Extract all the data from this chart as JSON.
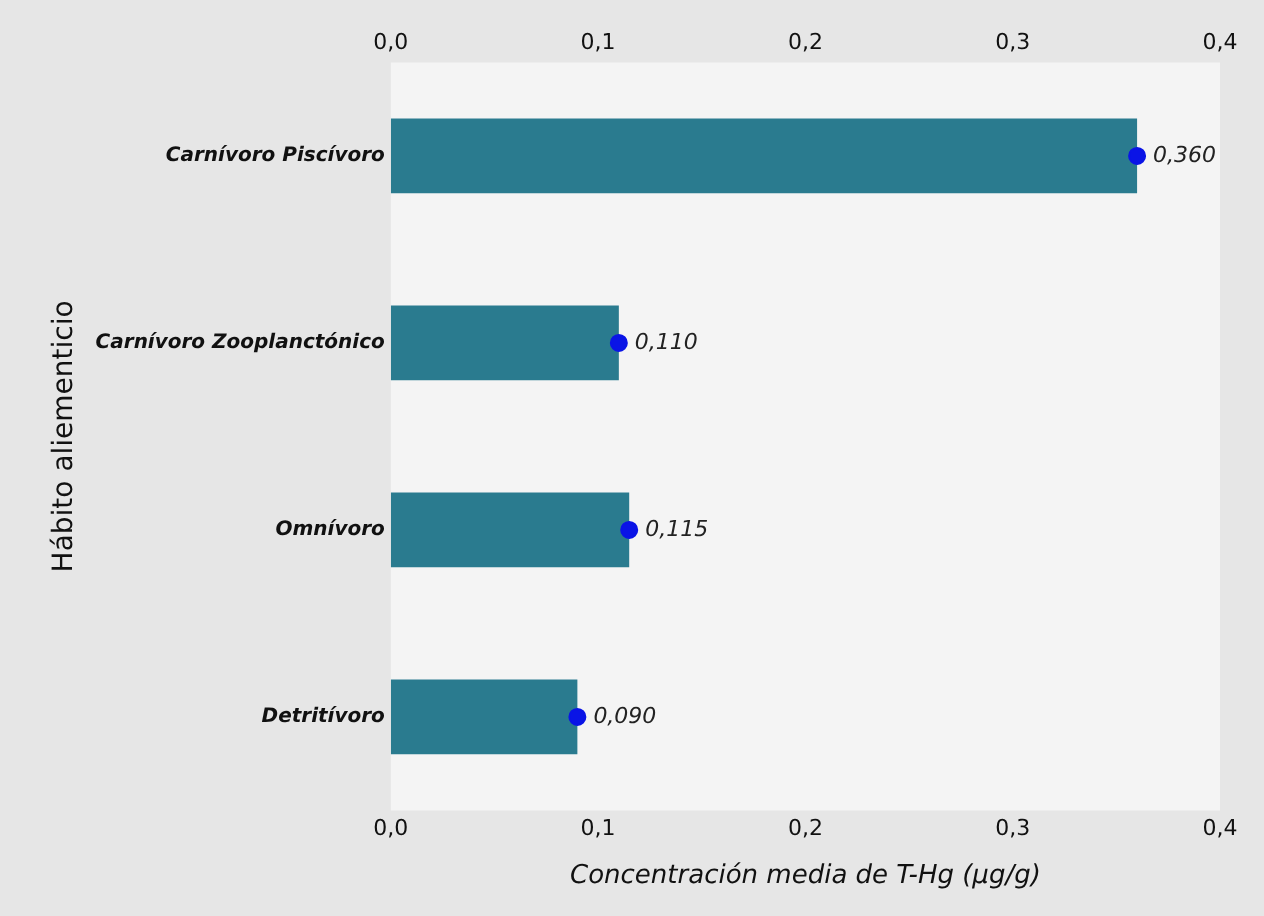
{
  "chart_data": {
    "type": "bar",
    "orientation": "horizontal",
    "xlabel": "Concentración media de T-Hg (µg/g)",
    "ylabel": "Hábito aliementicio",
    "categories": [
      "Carnívoro Piscívoro",
      "Carnívoro Zooplanctónico",
      "Omnívoro",
      "Detritívoro"
    ],
    "series": [
      {
        "type": "bar",
        "color": "#2a7b8f",
        "values": [
          0.36,
          0.11,
          0.115,
          0.09
        ]
      },
      {
        "type": "scatter",
        "color": "#0a14e6",
        "values": [
          0.36,
          0.11,
          0.115,
          0.09
        ],
        "value_labels": [
          "0,360",
          "0,110",
          "0,115",
          "0,090"
        ]
      }
    ],
    "xlim": [
      0,
      0.4
    ],
    "xticks": [
      {
        "value": 0,
        "label": "0,0"
      },
      {
        "value": 0.1,
        "label": "0,1"
      },
      {
        "value": 0.2,
        "label": "0,2"
      },
      {
        "value": 0.3,
        "label": "0,3"
      },
      {
        "value": 0.4,
        "label": "0,4"
      }
    ],
    "x2lim": [
      0,
      0.4
    ],
    "x2ticks": [
      {
        "value": 0,
        "label": "0,0"
      },
      {
        "value": 0.1,
        "label": "0,1"
      },
      {
        "value": 0.2,
        "label": "0,2"
      },
      {
        "value": 0.3,
        "label": "0,3"
      },
      {
        "value": 0.4,
        "label": "0,4"
      }
    ],
    "marker": "circle",
    "legend": false,
    "grid": false
  }
}
